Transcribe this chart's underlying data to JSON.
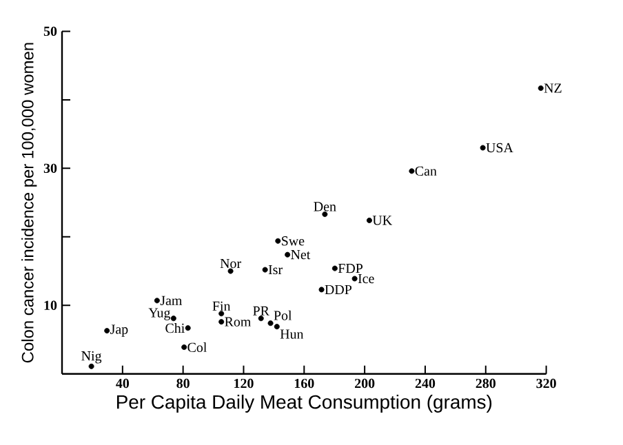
{
  "chart_data": {
    "type": "scatter",
    "xlabel": "Per Capita Daily Meat Consumption (grams)",
    "ylabel": "Colon cancer incidence per 100,000 women",
    "x": [
      19.4,
      29.7,
      62.8,
      73.7,
      83.2,
      80.7,
      105.3,
      105.3,
      111.4,
      134.2,
      131.5,
      137.8,
      142,
      142.7,
      149,
      173.7,
      203.1,
      180.3,
      193.4,
      171.5,
      231.1,
      278.1,
      316.4
    ],
    "values": [
      1.1,
      6.3,
      10.7,
      8.1,
      6.7,
      3.9,
      8.8,
      7.6,
      15.0,
      15.2,
      8.1,
      7.4,
      6.9,
      19.4,
      17.4,
      23.3,
      22.4,
      15.4,
      13.9,
      12.3,
      29.6,
      33.0,
      41.7
    ],
    "color": "#000000",
    "marker": "circle",
    "xlim": [
      0,
      320
    ],
    "xticks": [
      40,
      80,
      120,
      160,
      200,
      240,
      280,
      320
    ],
    "ylim": [
      0,
      50
    ],
    "yticks": [
      10,
      {
        "value": 20,
        "label": null
      },
      30,
      {
        "value": 40,
        "label": null
      },
      50
    ],
    "grid": false,
    "annotations": [
      {
        "text": "Nig",
        "x": 19.4,
        "y": 1.1
      },
      {
        "text": "Jap",
        "x": 29.7,
        "y": 6.3
      },
      {
        "text": "Jam",
        "x": 62.8,
        "y": 10.7
      },
      {
        "text": "Yug",
        "x": 73.7,
        "y": 8.1
      },
      {
        "text": "Chi",
        "x": 83.2,
        "y": 6.7
      },
      {
        "text": "Col",
        "x": 80.7,
        "y": 3.9
      },
      {
        "text": "Fin",
        "x": 105.3,
        "y": 8.8
      },
      {
        "text": "Rom",
        "x": 105.3,
        "y": 7.6
      },
      {
        "text": "Nor",
        "x": 111.4,
        "y": 15.0
      },
      {
        "text": "Isr",
        "x": 134.2,
        "y": 15.2
      },
      {
        "text": "PR",
        "x": 131.5,
        "y": 8.1
      },
      {
        "text": "Pol",
        "x": 137.8,
        "y": 7.4
      },
      {
        "text": "Hun",
        "x": 142,
        "y": 6.9
      },
      {
        "text": "Swe",
        "x": 142.7,
        "y": 19.4
      },
      {
        "text": "Net",
        "x": 149,
        "y": 17.4
      },
      {
        "text": "Den",
        "x": 173.7,
        "y": 23.3
      },
      {
        "text": "UK",
        "x": 203.1,
        "y": 22.4
      },
      {
        "text": "FDP",
        "x": 180.3,
        "y": 15.4
      },
      {
        "text": "Ice",
        "x": 193.4,
        "y": 13.9
      },
      {
        "text": "DDP",
        "x": 171.5,
        "y": 12.3
      },
      {
        "text": "Can",
        "x": 231.1,
        "y": 29.6
      },
      {
        "text": "USA",
        "x": 278.1,
        "y": 33.0
      },
      {
        "text": "NZ",
        "x": 316.4,
        "y": 41.7
      }
    ]
  }
}
